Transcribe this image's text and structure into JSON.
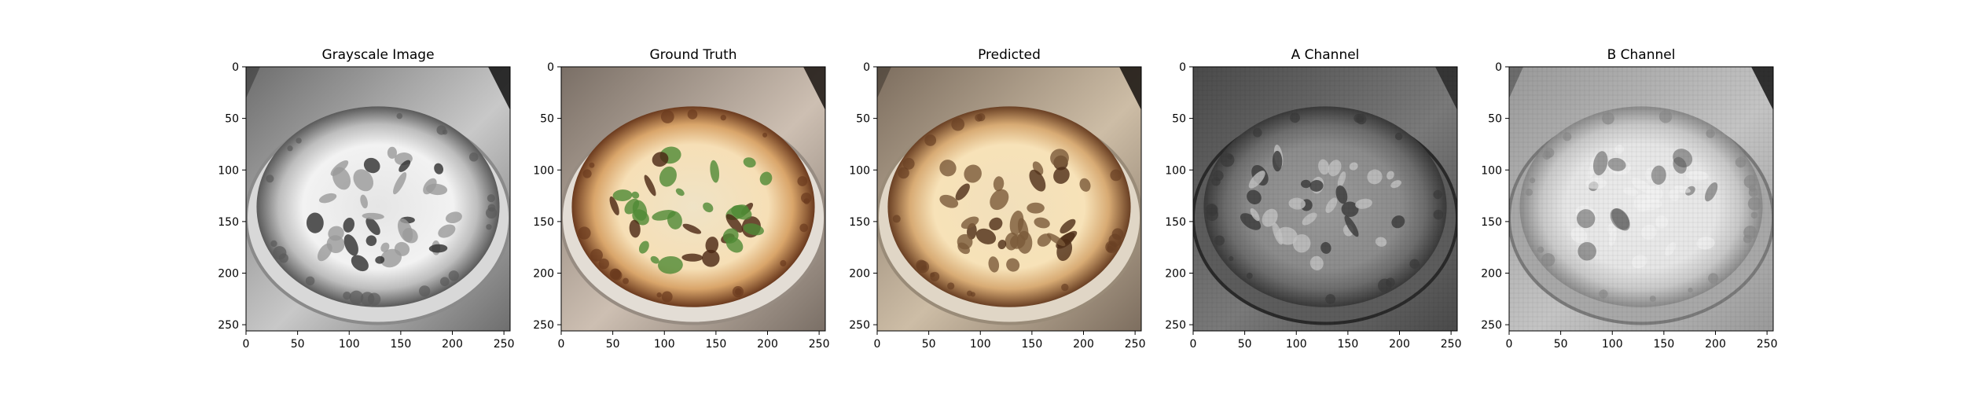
{
  "figure": {
    "panels": [
      {
        "id": "grayscale",
        "title": "Grayscale Image",
        "kind": "grayscale",
        "x_ticks": [
          "0",
          "50",
          "100",
          "150",
          "200",
          "250"
        ],
        "y_ticks": [
          "0",
          "50",
          "100",
          "150",
          "200",
          "250"
        ]
      },
      {
        "id": "ground-truth",
        "title": "Ground Truth",
        "kind": "color-truth",
        "x_ticks": [
          "0",
          "50",
          "100",
          "150",
          "200",
          "250"
        ],
        "y_ticks": [
          "0",
          "50",
          "100",
          "150",
          "200",
          "250"
        ]
      },
      {
        "id": "predicted",
        "title": "Predicted",
        "kind": "color-pred",
        "x_ticks": [
          "0",
          "50",
          "100",
          "150",
          "200",
          "250"
        ],
        "y_ticks": [
          "0",
          "50",
          "100",
          "150",
          "200",
          "250"
        ]
      },
      {
        "id": "a-channel",
        "title": "A Channel",
        "kind": "a-channel",
        "x_ticks": [
          "0",
          "50",
          "100",
          "150",
          "200",
          "250"
        ],
        "y_ticks": [
          "0",
          "50",
          "100",
          "150",
          "200",
          "250"
        ]
      },
      {
        "id": "b-channel",
        "title": "B Channel",
        "kind": "b-channel",
        "x_ticks": [
          "0",
          "50",
          "100",
          "150",
          "200",
          "250"
        ],
        "y_ticks": [
          "0",
          "50",
          "100",
          "150",
          "200",
          "250"
        ]
      }
    ],
    "axis_range": [
      0,
      256
    ],
    "image_subject": "pizza",
    "colors": {
      "crust_light": "#e8c99a",
      "crust_dark": "#6b3a1e",
      "greens": "#5f8a3a",
      "plate": "#d9d6d0",
      "background": "#7f7a74"
    }
  }
}
